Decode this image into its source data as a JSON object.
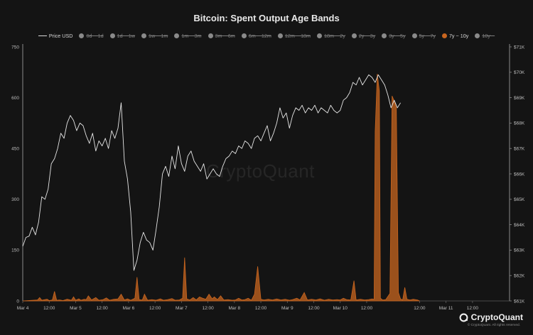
{
  "chart_data": {
    "type": "line",
    "title": "Bitcoin: Spent Output Age Bands",
    "legend": [
      {
        "label": "Price USD",
        "state": "active",
        "marker": "line"
      },
      {
        "label": "0d ~ 1d",
        "state": "hidden"
      },
      {
        "label": "1d ~ 1w",
        "state": "hidden"
      },
      {
        "label": "1w ~ 1m",
        "state": "hidden"
      },
      {
        "label": "1m ~ 3m",
        "state": "hidden"
      },
      {
        "label": "3m ~ 6m",
        "state": "hidden"
      },
      {
        "label": "6m ~ 12m",
        "state": "hidden"
      },
      {
        "label": "12m ~ 18m",
        "state": "hidden"
      },
      {
        "label": "18m ~ 2y",
        "state": "hidden"
      },
      {
        "label": "2y ~ 3y",
        "state": "hidden"
      },
      {
        "label": "3y ~ 5y",
        "state": "hidden"
      },
      {
        "label": "5y ~ 7y",
        "state": "hidden"
      },
      {
        "label": "7y ~ 10y",
        "state": "active",
        "marker": "dot"
      },
      {
        "label": "10y ~",
        "state": "hidden"
      }
    ],
    "legend_placement": "top-center",
    "x_ticks": [
      "Mar 4",
      "12:00",
      "Mar 5",
      "12:00",
      "Mar 6",
      "12:00",
      "Mar 7",
      "12:00",
      "Mar 8",
      "12:00",
      "Mar 9",
      "12:00",
      "Mar 10",
      "12:00",
      "12:00",
      "Mar 11",
      "12:00"
    ],
    "x_tick_days": [
      0,
      0.5,
      1,
      1.5,
      2,
      2.5,
      3,
      3.5,
      4,
      4.5,
      5,
      5.5,
      6,
      6.5,
      7.5,
      8,
      8.5
    ],
    "x_range_days": [
      0,
      9.2
    ],
    "y_left": {
      "ticks": [
        "0",
        "150",
        "300",
        "450",
        "600",
        "750"
      ],
      "range": [
        0,
        750
      ]
    },
    "y_right": {
      "ticks": [
        "$61K",
        "$62K",
        "$63K",
        "$64K",
        "$65K",
        "$66K",
        "$67K",
        "$68K",
        "$69K",
        "$70K",
        "$71K"
      ],
      "range": [
        61000,
        71000
      ]
    },
    "grid": false,
    "series": [
      {
        "name": "Price USD",
        "axis": "right",
        "color": "#e6e6e6",
        "points": [
          [
            0,
            63.15
          ],
          [
            0.06,
            63.5
          ],
          [
            0.12,
            63.55
          ],
          [
            0.18,
            63.9
          ],
          [
            0.24,
            63.6
          ],
          [
            0.3,
            64.1
          ],
          [
            0.36,
            65.1
          ],
          [
            0.42,
            65.0
          ],
          [
            0.48,
            65.4
          ],
          [
            0.54,
            66.4
          ],
          [
            0.6,
            66.6
          ],
          [
            0.66,
            67.0
          ],
          [
            0.72,
            67.6
          ],
          [
            0.78,
            67.4
          ],
          [
            0.84,
            68.0
          ],
          [
            0.9,
            68.3
          ],
          [
            0.96,
            68.1
          ],
          [
            1.02,
            67.7
          ],
          [
            1.08,
            68.0
          ],
          [
            1.14,
            67.9
          ],
          [
            1.2,
            67.5
          ],
          [
            1.26,
            67.2
          ],
          [
            1.32,
            67.6
          ],
          [
            1.38,
            66.9
          ],
          [
            1.44,
            67.3
          ],
          [
            1.5,
            67.1
          ],
          [
            1.56,
            67.4
          ],
          [
            1.62,
            67.0
          ],
          [
            1.68,
            67.7
          ],
          [
            1.74,
            67.4
          ],
          [
            1.8,
            67.8
          ],
          [
            1.86,
            68.8
          ],
          [
            1.92,
            66.5
          ],
          [
            1.98,
            65.8
          ],
          [
            2.04,
            64.5
          ],
          [
            2.1,
            62.2
          ],
          [
            2.16,
            62.6
          ],
          [
            2.22,
            63.3
          ],
          [
            2.28,
            63.7
          ],
          [
            2.34,
            63.4
          ],
          [
            2.4,
            63.3
          ],
          [
            2.46,
            63.0
          ],
          [
            2.52,
            63.8
          ],
          [
            2.58,
            64.7
          ],
          [
            2.64,
            66.0
          ],
          [
            2.7,
            66.3
          ],
          [
            2.76,
            65.9
          ],
          [
            2.82,
            66.7
          ],
          [
            2.88,
            66.2
          ],
          [
            2.94,
            67.1
          ],
          [
            3.0,
            66.4
          ],
          [
            3.06,
            66.1
          ],
          [
            3.12,
            66.7
          ],
          [
            3.18,
            66.9
          ],
          [
            3.24,
            66.5
          ],
          [
            3.3,
            66.3
          ],
          [
            3.36,
            66.1
          ],
          [
            3.42,
            66.4
          ],
          [
            3.48,
            65.8
          ],
          [
            3.54,
            66.0
          ],
          [
            3.6,
            66.2
          ],
          [
            3.66,
            66.0
          ],
          [
            3.72,
            65.9
          ],
          [
            3.78,
            66.3
          ],
          [
            3.84,
            66.6
          ],
          [
            3.9,
            66.7
          ],
          [
            3.96,
            66.9
          ],
          [
            4.02,
            66.8
          ],
          [
            4.08,
            67.1
          ],
          [
            4.14,
            67.0
          ],
          [
            4.2,
            67.3
          ],
          [
            4.26,
            67.2
          ],
          [
            4.32,
            67.0
          ],
          [
            4.38,
            67.4
          ],
          [
            4.44,
            67.5
          ],
          [
            4.5,
            67.3
          ],
          [
            4.56,
            67.6
          ],
          [
            4.62,
            67.9
          ],
          [
            4.68,
            67.3
          ],
          [
            4.74,
            67.6
          ],
          [
            4.8,
            68.0
          ],
          [
            4.86,
            68.6
          ],
          [
            4.92,
            68.2
          ],
          [
            4.98,
            68.4
          ],
          [
            5.04,
            67.8
          ],
          [
            5.1,
            68.3
          ],
          [
            5.16,
            68.6
          ],
          [
            5.22,
            68.5
          ],
          [
            5.28,
            68.7
          ],
          [
            5.34,
            68.4
          ],
          [
            5.4,
            68.6
          ],
          [
            5.46,
            68.5
          ],
          [
            5.52,
            68.7
          ],
          [
            5.58,
            68.4
          ],
          [
            5.64,
            68.6
          ],
          [
            5.7,
            68.5
          ],
          [
            5.76,
            68.4
          ],
          [
            5.82,
            68.7
          ],
          [
            5.88,
            68.5
          ],
          [
            5.94,
            68.4
          ],
          [
            6.0,
            68.5
          ],
          [
            6.06,
            68.9
          ],
          [
            6.12,
            69.0
          ],
          [
            6.18,
            69.2
          ],
          [
            6.24,
            69.6
          ],
          [
            6.3,
            69.5
          ],
          [
            6.36,
            69.8
          ],
          [
            6.42,
            69.5
          ],
          [
            6.48,
            69.7
          ],
          [
            6.54,
            69.9
          ],
          [
            6.6,
            69.8
          ],
          [
            6.66,
            69.6
          ],
          [
            6.72,
            69.9
          ],
          [
            6.78,
            69.7
          ],
          [
            6.84,
            69.5
          ],
          [
            6.9,
            69.1
          ],
          [
            6.96,
            68.6
          ],
          [
            7.02,
            68.9
          ],
          [
            7.08,
            68.6
          ],
          [
            7.14,
            68.8
          ]
        ]
      },
      {
        "name": "7y ~ 10y",
        "axis": "left",
        "color": "#c8651f",
        "points": [
          [
            0,
            0
          ],
          [
            0.1,
            1
          ],
          [
            0.2,
            2
          ],
          [
            0.28,
            3
          ],
          [
            0.32,
            10
          ],
          [
            0.36,
            2
          ],
          [
            0.46,
            5
          ],
          [
            0.5,
            1
          ],
          [
            0.56,
            3
          ],
          [
            0.6,
            28
          ],
          [
            0.64,
            2
          ],
          [
            0.7,
            3
          ],
          [
            0.76,
            1
          ],
          [
            0.84,
            5
          ],
          [
            0.92,
            2
          ],
          [
            0.96,
            12
          ],
          [
            1.0,
            2
          ],
          [
            1.06,
            6
          ],
          [
            1.1,
            2
          ],
          [
            1.16,
            5
          ],
          [
            1.2,
            4
          ],
          [
            1.24,
            15
          ],
          [
            1.3,
            3
          ],
          [
            1.38,
            10
          ],
          [
            1.44,
            2
          ],
          [
            1.52,
            4
          ],
          [
            1.58,
            9
          ],
          [
            1.64,
            2
          ],
          [
            1.72,
            5
          ],
          [
            1.8,
            6
          ],
          [
            1.86,
            20
          ],
          [
            1.92,
            3
          ],
          [
            1.98,
            6
          ],
          [
            2.04,
            2
          ],
          [
            2.12,
            8
          ],
          [
            2.16,
            70
          ],
          [
            2.2,
            4
          ],
          [
            2.26,
            3
          ],
          [
            2.3,
            20
          ],
          [
            2.36,
            2
          ],
          [
            2.44,
            4
          ],
          [
            2.52,
            2
          ],
          [
            2.6,
            6
          ],
          [
            2.66,
            2
          ],
          [
            2.74,
            4
          ],
          [
            2.82,
            7
          ],
          [
            2.88,
            2
          ],
          [
            2.96,
            3
          ],
          [
            3.02,
            8
          ],
          [
            3.06,
            128
          ],
          [
            3.1,
            6
          ],
          [
            3.16,
            3
          ],
          [
            3.22,
            10
          ],
          [
            3.28,
            3
          ],
          [
            3.34,
            12
          ],
          [
            3.4,
            8
          ],
          [
            3.46,
            5
          ],
          [
            3.52,
            20
          ],
          [
            3.58,
            6
          ],
          [
            3.62,
            12
          ],
          [
            3.68,
            4
          ],
          [
            3.74,
            15
          ],
          [
            3.8,
            3
          ],
          [
            3.88,
            4
          ],
          [
            3.96,
            2
          ],
          [
            4.02,
            3
          ],
          [
            4.08,
            8
          ],
          [
            4.14,
            3
          ],
          [
            4.2,
            4
          ],
          [
            4.26,
            8
          ],
          [
            4.32,
            2
          ],
          [
            4.38,
            20
          ],
          [
            4.44,
            102
          ],
          [
            4.5,
            5
          ],
          [
            4.56,
            3
          ],
          [
            4.64,
            5
          ],
          [
            4.72,
            3
          ],
          [
            4.8,
            6
          ],
          [
            4.88,
            3
          ],
          [
            4.96,
            5
          ],
          [
            5.04,
            2
          ],
          [
            5.1,
            4
          ],
          [
            5.18,
            8
          ],
          [
            5.24,
            3
          ],
          [
            5.32,
            25
          ],
          [
            5.38,
            3
          ],
          [
            5.46,
            5
          ],
          [
            5.54,
            3
          ],
          [
            5.62,
            6
          ],
          [
            5.7,
            2
          ],
          [
            5.78,
            5
          ],
          [
            5.86,
            3
          ],
          [
            5.94,
            4
          ],
          [
            6.0,
            3
          ],
          [
            6.06,
            8
          ],
          [
            6.12,
            4
          ],
          [
            6.2,
            3
          ],
          [
            6.26,
            60
          ],
          [
            6.3,
            3
          ],
          [
            6.38,
            5
          ],
          [
            6.46,
            3
          ],
          [
            6.54,
            4
          ],
          [
            6.6,
            6
          ],
          [
            6.64,
            5
          ],
          [
            6.66,
            500
          ],
          [
            6.7,
            670
          ],
          [
            6.74,
            620
          ],
          [
            6.76,
            8
          ],
          [
            6.8,
            3
          ],
          [
            6.86,
            4
          ],
          [
            6.94,
            22
          ],
          [
            6.98,
            605
          ],
          [
            7.02,
            590
          ],
          [
            7.06,
            570
          ],
          [
            7.1,
            25
          ],
          [
            7.14,
            6
          ],
          [
            7.18,
            3
          ],
          [
            7.22,
            40
          ],
          [
            7.26,
            5
          ],
          [
            7.32,
            3
          ],
          [
            7.38,
            5
          ],
          [
            7.46,
            3
          ],
          [
            7.5,
            0
          ]
        ]
      }
    ]
  },
  "watermark": "CryptoQuant",
  "brand": {
    "logo_text": "CryptoQuant",
    "copyright": "© CryptoQuant. All rights reserved."
  }
}
